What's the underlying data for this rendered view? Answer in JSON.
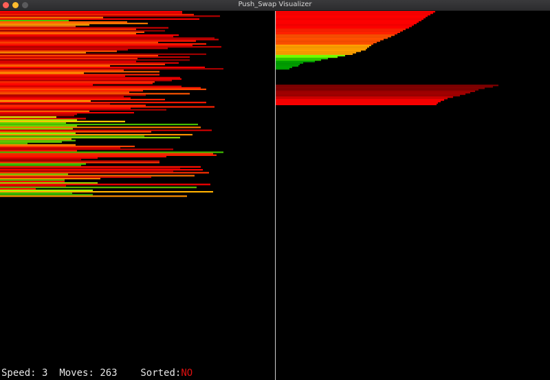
{
  "window": {
    "title": "Push_Swap Visualizer",
    "buttons": [
      {
        "name": "close",
        "color": "#fe5f57"
      },
      {
        "name": "minimize",
        "color": "#febc2e"
      },
      {
        "name": "maximize",
        "color": "#5a5a5c"
      }
    ]
  },
  "status": {
    "speed_label": "Speed:",
    "speed_value": "3",
    "moves_label": "Moves:",
    "moves_value": "263",
    "sorted_label": "Sorted:",
    "sorted_value": "NO",
    "sorted_color": "#e01010"
  },
  "stack_a": {
    "values": [
      265,
      265,
      282,
      320,
      150,
      290,
      100,
      185,
      215,
      130,
      110,
      245,
      198,
      240,
      210,
      198,
      260,
      252,
      312,
      318,
      285,
      230,
      300,
      280,
      322,
      244,
      186,
      170,
      125,
      300,
      230,
      276,
      200,
      276,
      198,
      260,
      240,
      160,
      298,
      325,
      180,
      232,
      122,
      232,
      182,
      262,
      264,
      250,
      225,
      222,
      135,
      264,
      292,
      300,
      208,
      188,
      276,
      212,
      180,
      190,
      240,
      132,
      300,
      160,
      212,
      312,
      190,
      242,
      130,
      195,
      112,
      108,
      82,
      125,
      112,
      182,
      96,
      288,
      112,
      292,
      106,
      308,
      220,
      110,
      280,
      210,
      262,
      104,
      110,
      90,
      40,
      110,
      196,
      175,
      252,
      112,
      325,
      310,
      315,
      242,
      142,
      118,
      232,
      232,
      125,
      118,
      292,
      262,
      295,
      252,
      304,
      99,
      283,
      220,
      146,
      94,
      94,
      142,
      306,
      96,
      286,
      52,
      135,
      310,
      105,
      135,
      272
    ],
    "colors": [
      "#ff0000",
      "#e60000",
      "#ff2200",
      "#b30000",
      "#ff8000",
      "#ff0000",
      "#40d000",
      "#ff6000",
      "#ff7a00",
      "#ffa000",
      "#e06010",
      "#cc0000",
      "#ff3300",
      "#990000",
      "#ff5000",
      "#ff6600",
      "#ff0000",
      "#dd0000",
      "#aa0000",
      "#cc0000",
      "#ff1500",
      "#ff4400",
      "#ff2000",
      "#ee0000",
      "#bb0000",
      "#d40000",
      "#c00000",
      "#ff5000",
      "#ff9000",
      "#a00000",
      "#ff4000",
      "#cc0000",
      "#ff2a00",
      "#990000",
      "#e00000",
      "#dd0000",
      "#ff3a00",
      "#ff7000",
      "#ff0000",
      "#aa0000",
      "#ff3000",
      "#ff6000",
      "#ff9a00",
      "#ff2000",
      "#f20000",
      "#cc0000",
      "#ee0000",
      "#bb0000",
      "#ff3000",
      "#ff1000",
      "#ff0000",
      "#dd0000",
      "#ff1a00",
      "#ff4800",
      "#ff2000",
      "#ff4400",
      "#ff5500",
      "#b00000",
      "#c30000",
      "#ff0000",
      "#ff2000",
      "#ffa800",
      "#ff1800",
      "#a00000",
      "#ff2800",
      "#ff2000",
      "#ff0000",
      "#aa0000",
      "#ff6000",
      "#f00000",
      "#cc0000",
      "#b00000",
      "#c8ff00",
      "#e00000",
      "#b0ff00",
      "#ffd000",
      "#60d000",
      "#48c000",
      "#70e000",
      "#ff7800",
      "#78e000",
      "#d00000",
      "#ff5000",
      "#80ff00",
      "#ff9000",
      "#40a000",
      "#90e000",
      "#ff8000",
      "#60c000",
      "#68d000",
      "#50c000",
      "#ff8800",
      "#ff4000",
      "#e00000",
      "#c00000",
      "#ff1000",
      "#40c000",
      "#ff3000",
      "#ff2000",
      "#ff1000",
      "#dd0000",
      "#b00000",
      "#a00000",
      "#ff3000",
      "#40d000",
      "#30b000",
      "#ff1000",
      "#900000",
      "#ff0000",
      "#aa0000",
      "#ff3000",
      "#60d000",
      "#ff7000",
      "#d00000",
      "#ff8000",
      "#50b000",
      "#ff0000",
      "#a0e000",
      "#ff0000",
      "#c00000",
      "#60c000",
      "#ff0000",
      "#a0ff00",
      "#ffb000",
      "#40c000",
      "#30b000",
      "#ff9000"
    ]
  },
  "stack_b": {
    "values": [
      232,
      229,
      225,
      221,
      218,
      215,
      212,
      208,
      205,
      201,
      198,
      194,
      189,
      185,
      181,
      177,
      173,
      168,
      163,
      157,
      152,
      147,
      142,
      139,
      136,
      133,
      131,
      124,
      117,
      112,
      101,
      90,
      76,
      66,
      57,
      40,
      35,
      33,
      24,
      20,
      324,
      316,
      304,
      295,
      290,
      283,
      276,
      268,
      258,
      250,
      245,
      240,
      236,
      234
    ],
    "colors": [
      "#ff0000",
      "#ff0000",
      "#ff0000",
      "#ff0000",
      "#ff0000",
      "#ff0000",
      "#ff0000",
      "#ff0000",
      "#ff0000",
      "#ff0000",
      "#ff0000",
      "#ff0000",
      "#ff2000",
      "#ff2000",
      "#ff2000",
      "#ff2000",
      "#ff5000",
      "#ff5000",
      "#ff5000",
      "#ff5000",
      "#ff5000",
      "#ff5000",
      "#ff5000",
      "#ffa000",
      "#ffa000",
      "#ffa000",
      "#ffa000",
      "#ffa000",
      "#ffa000",
      "#ffa000",
      "#70ff00",
      "#70ff00",
      "#30d000",
      "#30d000",
      "#00a000",
      "#00a000",
      "#00a000",
      "#00a000",
      "#00a000",
      "#00a000",
      "#800000",
      "#800000",
      "#800000",
      "#800000",
      "#a00000",
      "#a00000",
      "#a00000",
      "#a00000",
      "#d00000",
      "#d00000",
      "#ff0000",
      "#ff0000",
      "#ff0000",
      "#ff0000"
    ],
    "gap_after_index": 39
  },
  "colors": {
    "background": "#000000",
    "divider": "#d0d0d0",
    "text": "#e6e6e6"
  }
}
